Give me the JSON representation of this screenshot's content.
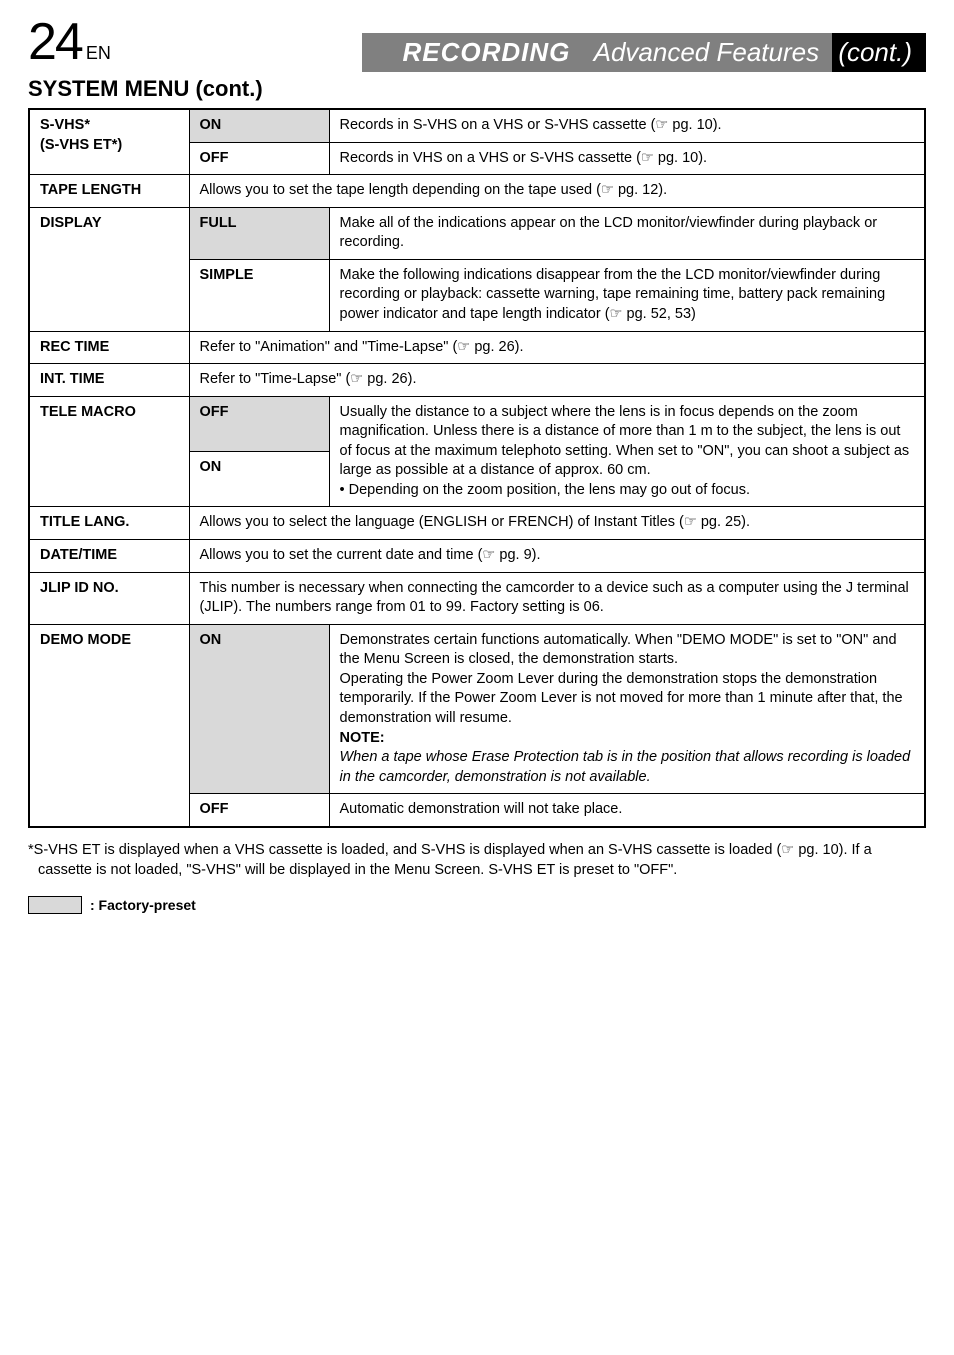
{
  "header": {
    "page_number": "24",
    "lang_suffix": "EN",
    "banner_recording": "RECORDING",
    "banner_adv": "Advanced Features",
    "banner_cont": "(cont.)"
  },
  "section_title": "SYSTEM MENU (cont.)",
  "rows": [
    {
      "label": "S-VHS*\n(S-VHS ET*)",
      "opts": [
        {
          "name": "ON",
          "preset": true,
          "desc": "Records in S-VHS on a VHS or S-VHS cassette (☞ pg. 10)."
        },
        {
          "name": "OFF",
          "preset": false,
          "desc": "Records in VHS on a VHS or S-VHS cassette (☞ pg. 10)."
        }
      ]
    },
    {
      "label": "TAPE LENGTH",
      "full": "Allows you to set the tape length depending on the tape used (☞ pg. 12)."
    },
    {
      "label": "DISPLAY",
      "opts": [
        {
          "name": "FULL",
          "preset": true,
          "desc": "Make all of the indications appear on the LCD monitor/viewfinder during playback or recording."
        },
        {
          "name": "SIMPLE",
          "preset": false,
          "desc": "Make the following indications disappear from the the LCD monitor/viewfinder during recording or playback: cassette warning, tape remaining time, battery pack remaining power indicator and tape length indicator (☞ pg. 52, 53)"
        }
      ]
    },
    {
      "label": "REC TIME",
      "full": "Refer to \"Animation\" and \"Time-Lapse\" (☞ pg. 26)."
    },
    {
      "label": "INT. TIME",
      "full": "Refer to \"Time-Lapse\" (☞ pg. 26)."
    },
    {
      "label": "TELE MACRO",
      "opts_merged": {
        "first": {
          "name": "OFF",
          "preset": true
        },
        "second": {
          "name": "ON",
          "preset": false
        },
        "desc": "Usually the distance to a subject where the lens is in focus depends on the zoom magnification. Unless there is a distance of more than 1 m to the subject, the lens is out of focus at the maximum telephoto setting. When set to \"ON\", you can shoot a subject as large as possible at a distance of approx. 60 cm.\n• Depending on the zoom position, the lens may go out of focus."
      }
    },
    {
      "label": "TITLE LANG.",
      "full": "Allows you to select the language (ENGLISH or FRENCH) of Instant Titles (☞ pg. 25)."
    },
    {
      "label": "DATE/TIME",
      "full": "Allows you to set the current date and time (☞ pg. 9)."
    },
    {
      "label": "JLIP ID NO.",
      "full": "This number is necessary when connecting the camcorder to a device such as a computer using the J terminal (JLIP). The numbers range from 01 to 99. Factory setting is 06."
    },
    {
      "label": "DEMO MODE",
      "opts": [
        {
          "name": "ON",
          "preset": true,
          "desc_html": "Demonstrates certain functions automatically. When \"DEMO MODE\" is set to \"ON\" and the Menu Screen is closed, the demonstration starts.\nOperating the Power Zoom Lever during the demonstration stops the demonstration temporarily. If the Power Zoom Lever is not moved for more than 1 minute after that, the demonstration will resume.",
          "note_head": "NOTE:",
          "note_body": "When a tape whose Erase Protection tab is in the position that allows recording is loaded in the camcorder, demonstration is not available."
        },
        {
          "name": "OFF",
          "preset": false,
          "desc": "Automatic demonstration will not take place."
        }
      ]
    }
  ],
  "footnote": "*S-VHS ET is displayed when a VHS cassette is loaded, and S-VHS is displayed when an S-VHS cassette is loaded (☞ pg. 10). If a cassette is not loaded, \"S-VHS\" will be displayed in the Menu Screen. S-VHS ET is preset to \"OFF\".",
  "factory_label": ": Factory-preset",
  "colors": {
    "preset_bg": "#d9d9d9",
    "banner_grey": "#808080",
    "banner_black": "#000000",
    "text": "#000000"
  },
  "typography": {
    "body_fontsize": 14.5,
    "pagenum_fontsize": 52,
    "banner_fontsize": 26,
    "section_title_fontsize": 22
  }
}
